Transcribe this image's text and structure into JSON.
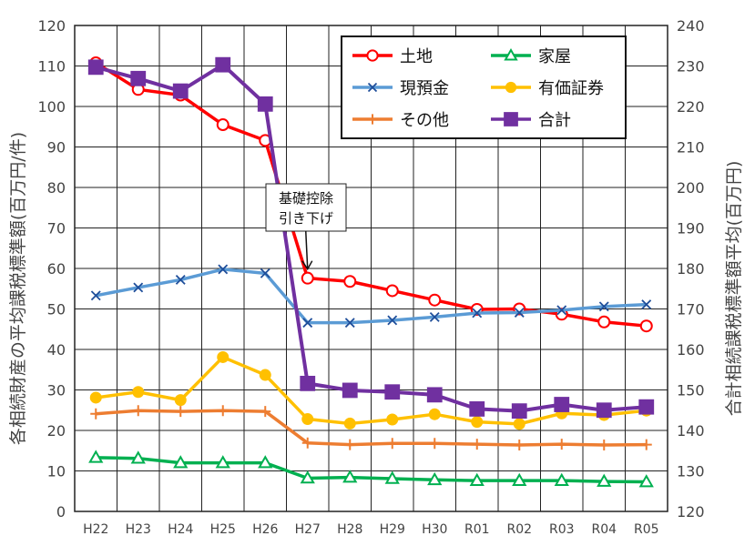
{
  "chart_data": {
    "type": "line",
    "categories": [
      "H22",
      "H23",
      "H24",
      "H25",
      "H26",
      "H27",
      "H28",
      "H29",
      "H30",
      "R01",
      "R02",
      "R03",
      "R04",
      "R05"
    ],
    "y_left": {
      "label": "各相続財産の平均課税標準額(百万円/件)",
      "min": 0,
      "max": 120,
      "step": 10
    },
    "y_right": {
      "label": "合計相続課税標準額平均(百万円)",
      "min": 120,
      "max": 240,
      "step": 10
    },
    "grid": true,
    "legend_position": "top-right",
    "series": [
      {
        "name": "土地",
        "axis": "left",
        "color": "#ff0000",
        "marker": "circle-open",
        "values": [
          110.8,
          104.2,
          102.8,
          95.5,
          91.6,
          57.6,
          56.8,
          54.5,
          52.2,
          49.9,
          50.0,
          48.7,
          46.8,
          45.8
        ]
      },
      {
        "name": "家屋",
        "axis": "left",
        "color": "#00b050",
        "marker": "triangle-open",
        "values": [
          13.3,
          13.1,
          12.0,
          12.0,
          12.0,
          8.2,
          8.4,
          8.1,
          7.8,
          7.6,
          7.6,
          7.6,
          7.4,
          7.3
        ]
      },
      {
        "name": "現預金",
        "axis": "left",
        "color": "#5b9bd5",
        "marker": "x",
        "values": [
          53.3,
          55.3,
          57.2,
          59.8,
          58.8,
          46.6,
          46.6,
          47.2,
          48.0,
          49.0,
          49.1,
          49.7,
          50.6,
          51.1
        ]
      },
      {
        "name": "有価証券",
        "axis": "left",
        "color": "#ffc000",
        "marker": "circle-filled",
        "values": [
          28.1,
          29.5,
          27.5,
          38.1,
          33.7,
          22.8,
          21.7,
          22.7,
          24.0,
          22.1,
          21.6,
          24.2,
          23.8,
          24.9
        ]
      },
      {
        "name": "その他",
        "axis": "left",
        "color": "#ed7d31",
        "marker": "plus",
        "values": [
          24.1,
          24.9,
          24.7,
          24.9,
          24.7,
          16.9,
          16.5,
          16.8,
          16.8,
          16.6,
          16.4,
          16.6,
          16.4,
          16.5
        ]
      },
      {
        "name": "合計",
        "axis": "right",
        "color": "#7030a0",
        "marker": "square",
        "values": [
          229.7,
          226.9,
          223.8,
          230.3,
          220.6,
          151.6,
          149.9,
          149.5,
          148.8,
          145.3,
          144.8,
          146.4,
          145.0,
          145.8
        ]
      }
    ],
    "annotation": {
      "lines": [
        "基礎控除",
        "引き下げ"
      ],
      "target_category": "H27"
    }
  }
}
